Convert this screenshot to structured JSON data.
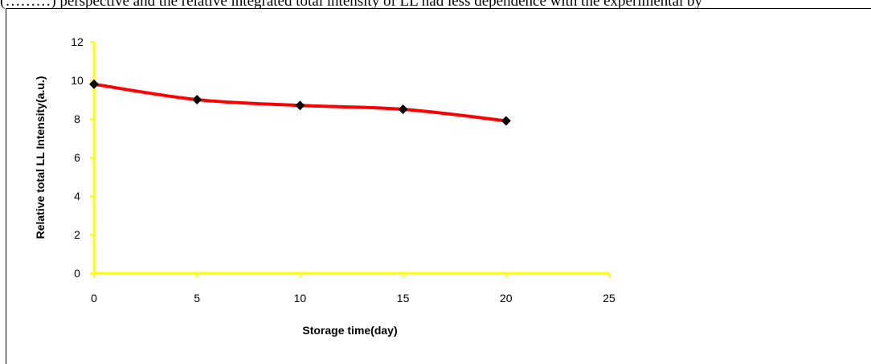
{
  "caption_fragment": "(………) perspective and the relative integrated total intensity of LL had less dependence with the experimental by",
  "chart_data": {
    "type": "line",
    "title": "",
    "xlabel": "Storage time(day)",
    "ylabel": "Relative total LL Intensity(a.u.)",
    "xlim": [
      0,
      25
    ],
    "ylim": [
      0,
      12
    ],
    "xticks": [
      0,
      5,
      10,
      15,
      20,
      25
    ],
    "yticks": [
      0,
      2,
      4,
      6,
      8,
      10,
      12
    ],
    "grid": false,
    "legend": "none",
    "series": [
      {
        "x": [
          0,
          5,
          10,
          15,
          20
        ],
        "y": [
          9.8,
          9.0,
          8.7,
          8.5,
          7.9
        ]
      }
    ],
    "colors": {
      "line": "#ff0000",
      "marker": "#000000",
      "axis": "#ffff00"
    }
  }
}
